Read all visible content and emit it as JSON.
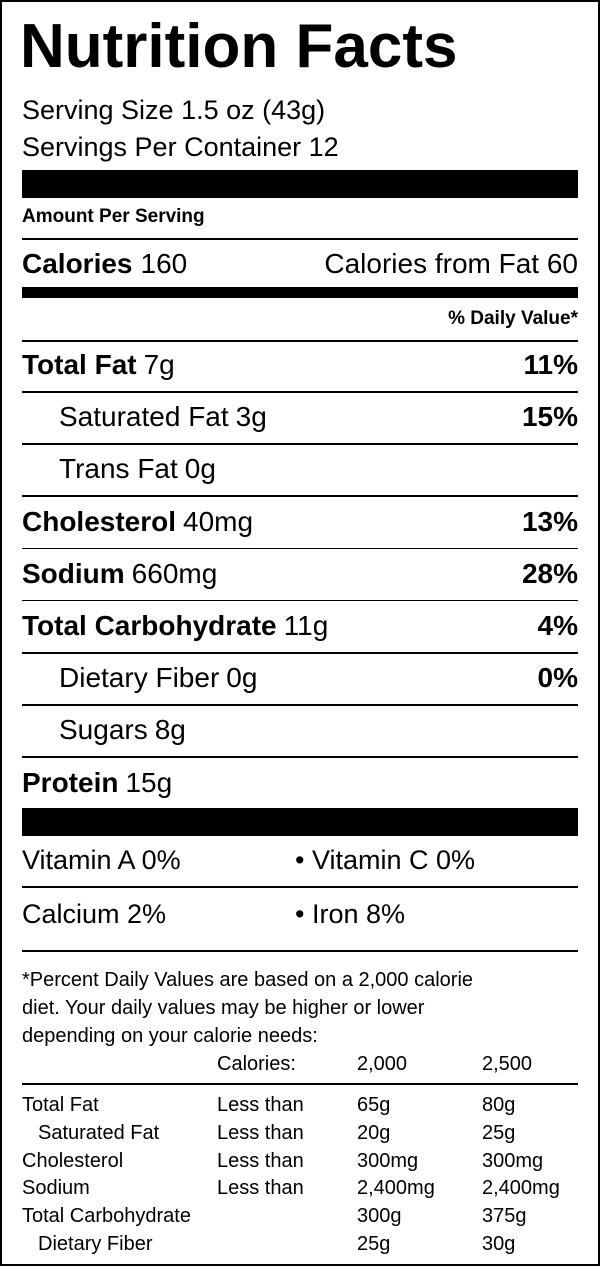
{
  "title": "Nutrition Facts",
  "serving_size": "Serving Size 1.5 oz (43g)",
  "servings_per_container": "Servings Per Container 12",
  "amount_per_serving": "Amount Per Serving",
  "calories": {
    "label": "Calories",
    "value": "160"
  },
  "calories_from_fat": "Calories from Fat 60",
  "daily_value_header": "% Daily Value*",
  "nutrients": [
    {
      "name": "Total Fat",
      "amount": "7g",
      "dv": "11%",
      "indent": false
    },
    {
      "name": "Saturated Fat",
      "amount": "3g",
      "dv": "15%",
      "indent": true
    },
    {
      "name": "Trans Fat",
      "amount": "0g",
      "indent": true
    },
    {
      "name": "Cholesterol",
      "amount": "40mg",
      "dv": "13%",
      "indent": false
    },
    {
      "name": "Sodium",
      "amount": "660mg",
      "dv": "28%",
      "indent": false
    },
    {
      "name": "Total Carbohydrate",
      "amount": "11g",
      "dv": "4%",
      "indent": false
    },
    {
      "name": "Dietary Fiber",
      "amount": "0g",
      "dv": "0%",
      "indent": true
    },
    {
      "name": "Sugars",
      "amount": "8g",
      "indent": true
    },
    {
      "name": "Protein",
      "amount": "15g",
      "indent": false
    }
  ],
  "vitamins": [
    [
      "Vitamin A 0%",
      "• Vitamin C 0%"
    ],
    [
      "Calcium 2%",
      "• Iron 8%"
    ]
  ],
  "footnote": [
    "*Percent Daily Values are based on a 2,000 calorie",
    "diet. Your daily values may be higher or lower",
    "depending on your calorie needs:"
  ],
  "reference_table": {
    "header": [
      "Calories:",
      "2,000",
      "2,500"
    ],
    "rows": [
      {
        "nutrient": "Total Fat",
        "limit": "Less than",
        "v2000": "65g",
        "v2500": "80g",
        "indent": false
      },
      {
        "nutrient": "Saturated Fat",
        "limit": "Less than",
        "v2000": "20g",
        "v2500": "25g",
        "indent": true
      },
      {
        "nutrient": "Cholesterol",
        "limit": "Less than",
        "v2000": "300mg",
        "v2500": "300mg",
        "indent": false
      },
      {
        "nutrient": "Sodium",
        "limit": "Less than",
        "v2000": "2,400mg",
        "v2500": "2,400mg",
        "indent": false
      },
      {
        "nutrient": "Total Carbohydrate",
        "v2000": "300g",
        "v2500": "375g",
        "indent": false
      },
      {
        "nutrient": "Dietary Fiber",
        "v2000": "25g",
        "v2500": "30g",
        "indent": true
      }
    ]
  }
}
